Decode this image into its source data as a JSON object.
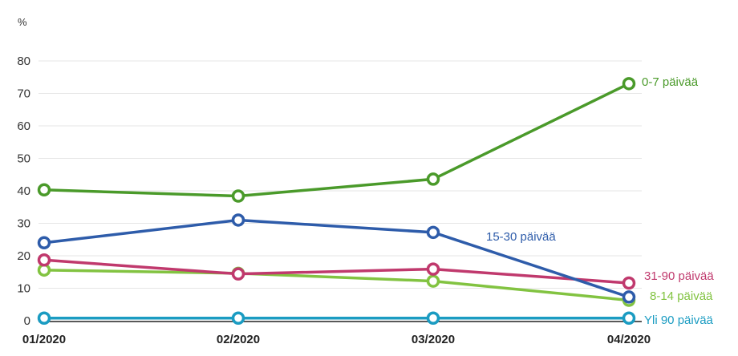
{
  "chart_data": {
    "type": "line",
    "title": "",
    "xlabel": "",
    "ylabel": "%",
    "ylim": [
      0,
      80
    ],
    "yticks": [
      0,
      10,
      20,
      30,
      40,
      50,
      60,
      70,
      80
    ],
    "grid": true,
    "categories": [
      "01/2020",
      "02/2020",
      "03/2020",
      "04/2020"
    ],
    "series": [
      {
        "name": "0-7 päivää",
        "color": "#4a9a2a",
        "values": [
          40.3,
          38.4,
          43.6,
          73.0
        ]
      },
      {
        "name": "15-30 päivää",
        "color": "#2e5caa",
        "values": [
          24.0,
          31.0,
          27.2,
          7.3
        ]
      },
      {
        "name": "31-90 päivää",
        "color": "#c0396d",
        "values": [
          18.7,
          14.4,
          15.9,
          11.6
        ]
      },
      {
        "name": "8-14 päivää",
        "color": "#82c341",
        "values": [
          15.6,
          14.6,
          12.2,
          6.3
        ]
      },
      {
        "name": "Yli 90 päivää",
        "color": "#1b9cc2",
        "values": [
          0.8,
          0.8,
          0.8,
          0.8
        ]
      }
    ]
  }
}
